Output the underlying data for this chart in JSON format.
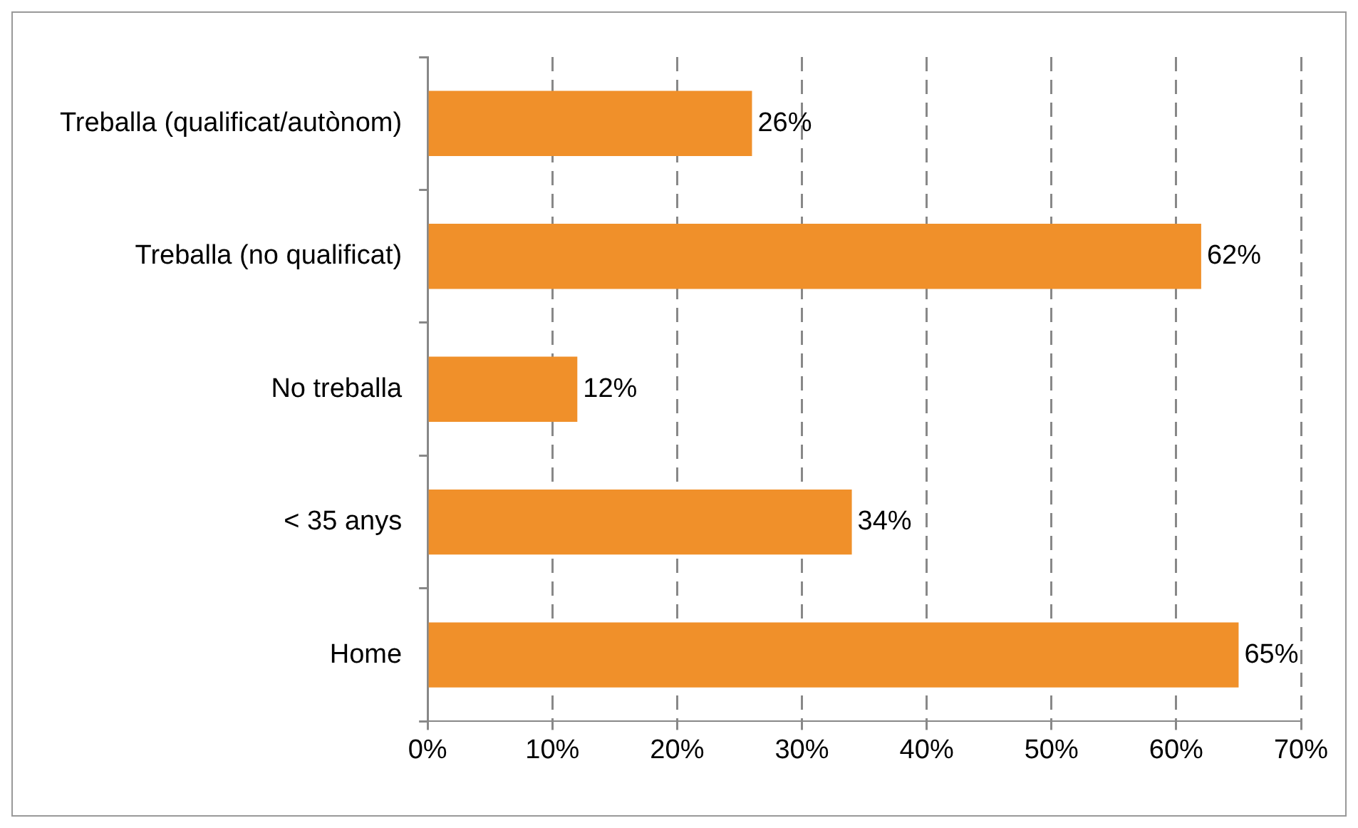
{
  "chart_data": {
    "type": "bar",
    "orientation": "horizontal",
    "categories": [
      "Treballa (qualificat/autònom)",
      "Treballa (no qualificat)",
      "No treballa",
      "< 35 anys",
      "Home"
    ],
    "values": [
      26,
      62,
      12,
      34,
      65
    ],
    "value_labels": [
      "26%",
      "62%",
      "12%",
      "34%",
      "65%"
    ],
    "color": "#f0902a",
    "xlim": [
      0,
      70
    ],
    "xticks": [
      {
        "value": 0,
        "label": "0%"
      },
      {
        "value": 10,
        "label": "10%"
      },
      {
        "value": 20,
        "label": "20%"
      },
      {
        "value": 30,
        "label": "30%"
      },
      {
        "value": 40,
        "label": "40%"
      },
      {
        "value": 50,
        "label": "50%"
      },
      {
        "value": 60,
        "label": "60%"
      },
      {
        "value": 70,
        "label": "70%"
      }
    ],
    "grid": "x",
    "legend": false
  }
}
